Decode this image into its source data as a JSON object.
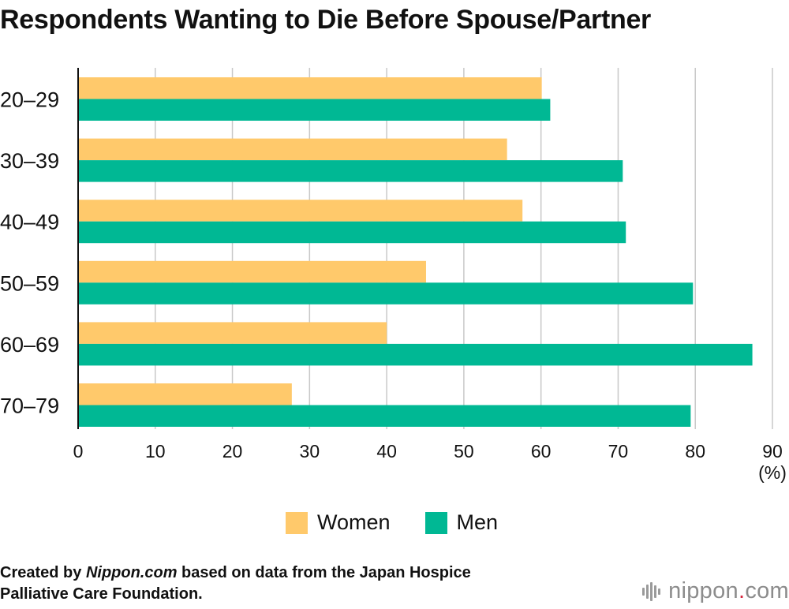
{
  "chart_data": {
    "type": "bar",
    "orientation": "horizontal",
    "title": "Respondents Wanting to Die Before Spouse/Partner",
    "categories": [
      "20–29",
      "30–39",
      "40–49",
      "50–59",
      "60–69",
      "70–79"
    ],
    "series": [
      {
        "name": "Women",
        "color": "#FFC96B",
        "values": [
          60.1,
          55.6,
          57.6,
          45.1,
          40.0,
          27.7
        ]
      },
      {
        "name": "Men",
        "color": "#00B894",
        "values": [
          61.2,
          70.6,
          71.0,
          79.7,
          87.4,
          79.4
        ]
      }
    ],
    "xlim": [
      0,
      90
    ],
    "xticks": [
      0,
      10,
      20,
      30,
      40,
      50,
      60,
      70,
      80,
      90
    ],
    "unit_label": "(%)",
    "grid": true,
    "legend_position": "bottom"
  },
  "legend": {
    "women_label": "Women",
    "men_label": "Men",
    "women_color": "#FFC96B",
    "men_color": "#00B894"
  },
  "source": {
    "prefix": "Created by ",
    "name": "Nippon.com",
    "suffix": " based on data from the Japan Hospice",
    "line2": "Palliative Care Foundation."
  },
  "brand": {
    "name": "nippon",
    "dot": ".",
    "tld": "com"
  }
}
